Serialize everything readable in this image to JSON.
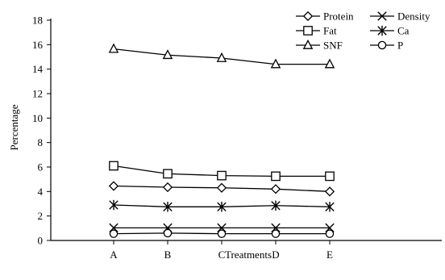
{
  "chart_data": {
    "type": "line",
    "xlabel": "Treatments",
    "ylabel": "Percentage",
    "categories": [
      "A",
      "B",
      "C",
      "D",
      "E"
    ],
    "ylim": [
      0,
      18
    ],
    "yticks": [
      0,
      2,
      4,
      6,
      8,
      10,
      12,
      14,
      16,
      18
    ],
    "grid": false,
    "legend_position": "top-right",
    "series": [
      {
        "name": "Protein",
        "marker": "diamond",
        "values": [
          4.45,
          4.35,
          4.3,
          4.2,
          4.0
        ]
      },
      {
        "name": "Fat",
        "marker": "square",
        "values": [
          6.1,
          5.45,
          5.3,
          5.25,
          5.25
        ]
      },
      {
        "name": "SNF",
        "marker": "triangle",
        "values": [
          15.65,
          15.15,
          14.9,
          14.4,
          14.4
        ]
      },
      {
        "name": "Density",
        "marker": "x",
        "values": [
          1.03,
          1.03,
          1.03,
          1.03,
          1.03
        ]
      },
      {
        "name": "Ca",
        "marker": "asterisk",
        "values": [
          2.9,
          2.75,
          2.75,
          2.85,
          2.75
        ]
      },
      {
        "name": "P",
        "marker": "circle",
        "values": [
          0.55,
          0.6,
          0.55,
          0.55,
          0.55
        ]
      }
    ],
    "line_color": "#000000"
  }
}
